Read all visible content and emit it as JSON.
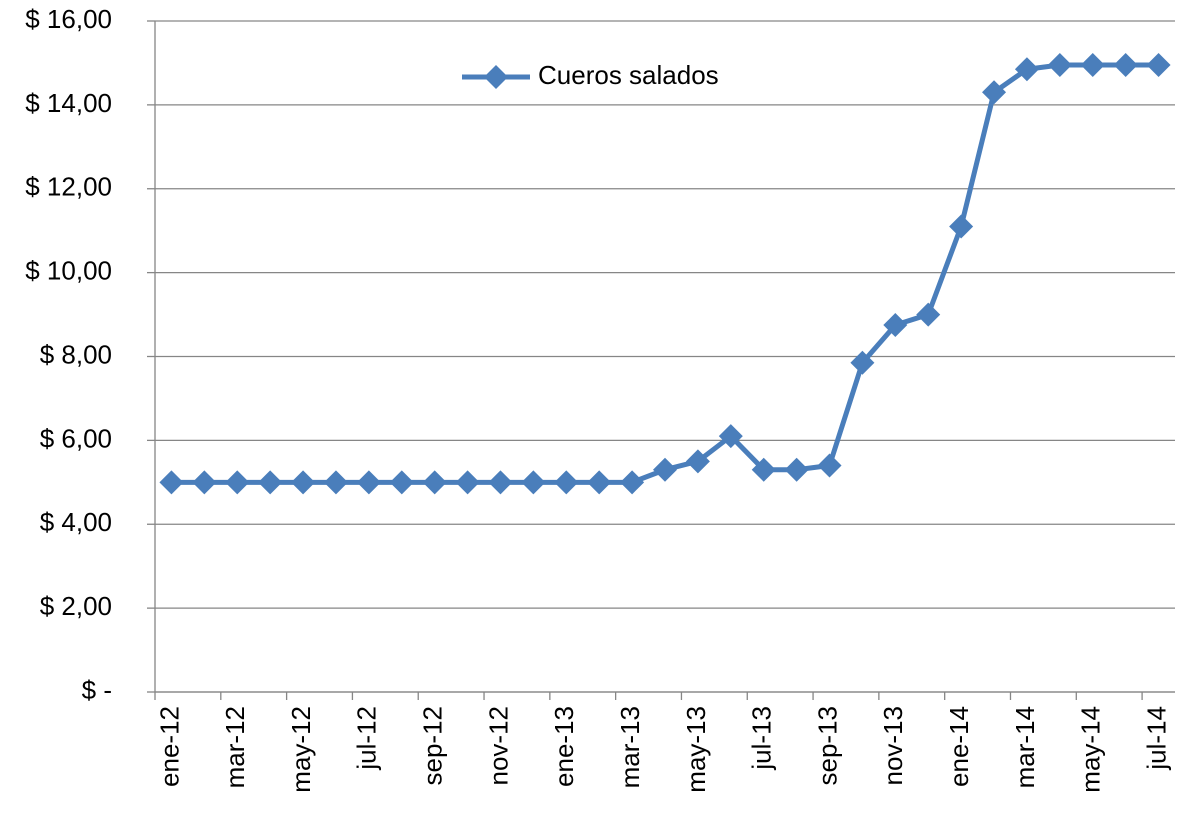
{
  "chart_data": {
    "type": "line",
    "categories": [
      "ene-12",
      null,
      "mar-12",
      null,
      "may-12",
      null,
      "jul-12",
      null,
      "sep-12",
      null,
      "nov-12",
      null,
      "ene-13",
      null,
      "mar-13",
      null,
      "may-13",
      null,
      "jul-13",
      null,
      "sep-13",
      null,
      "nov-13",
      null,
      "ene-14",
      null,
      "mar-14",
      null,
      "may-14",
      null,
      "jul-14"
    ],
    "series": [
      {
        "name": "Cueros salados",
        "color": "#4a7ebb",
        "values": [
          5,
          5,
          5,
          5,
          5,
          5,
          5,
          5,
          5,
          5,
          5,
          5,
          5,
          5,
          5,
          5.3,
          5.5,
          6.1,
          5.3,
          5.3,
          5.4,
          7.85,
          8.75,
          9,
          11.1,
          14.3,
          14.85,
          14.95,
          14.95,
          14.95,
          14.95
        ]
      }
    ],
    "ylim": [
      0,
      16
    ],
    "yticks": [
      {
        "value": 0,
        "label": "$ -"
      },
      {
        "value": 2,
        "label": "$ 2,00"
      },
      {
        "value": 4,
        "label": "$ 4,00"
      },
      {
        "value": 6,
        "label": "$ 6,00"
      },
      {
        "value": 8,
        "label": "$ 8,00"
      },
      {
        "value": 10,
        "label": "$ 10,00"
      },
      {
        "value": 12,
        "label": "$ 12,00"
      },
      {
        "value": 14,
        "label": "$ 14,00"
      },
      {
        "value": 16,
        "label": "$ 16,00"
      }
    ],
    "grid": true,
    "legend": "top"
  }
}
